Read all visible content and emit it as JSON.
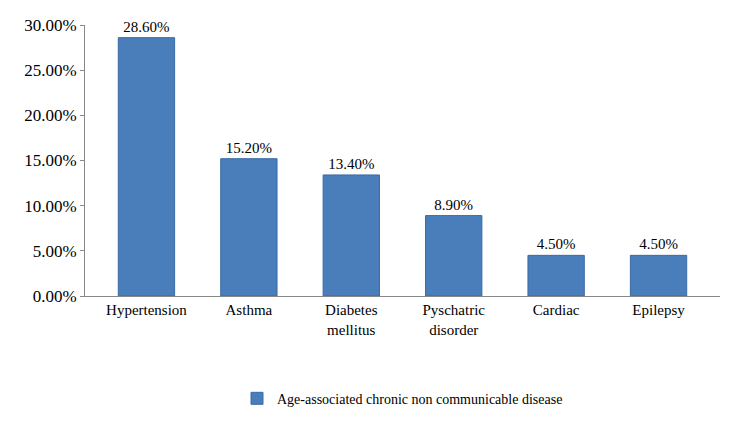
{
  "chart_data": {
    "type": "bar",
    "categories": [
      "Hypertension",
      "Asthma",
      "Diabetes mellitus",
      "Pyschatric disorder",
      "Cardiac",
      "Epilepsy"
    ],
    "series": [
      {
        "name": "Age-associated chronic non communicable disease",
        "color": "#4a7ebb",
        "values": [
          28.6,
          15.2,
          13.4,
          8.9,
          4.5,
          4.5
        ],
        "value_labels": [
          "28.60%",
          "15.20%",
          "13.40%",
          "8.90%",
          "4.50%",
          "4.50%"
        ]
      }
    ],
    "ylim": [
      0,
      30
    ],
    "yticks": [
      {
        "value": 0,
        "label": "0.00%"
      },
      {
        "value": 5,
        "label": "5.00%"
      },
      {
        "value": 10,
        "label": "10.00%"
      },
      {
        "value": 15,
        "label": "15.00%"
      },
      {
        "value": 20,
        "label": "20.00%"
      },
      {
        "value": 25,
        "label": "25.00%"
      },
      {
        "value": 30,
        "label": "30.00%"
      }
    ],
    "grid": false,
    "legend": "bottom",
    "data_labels": true
  }
}
